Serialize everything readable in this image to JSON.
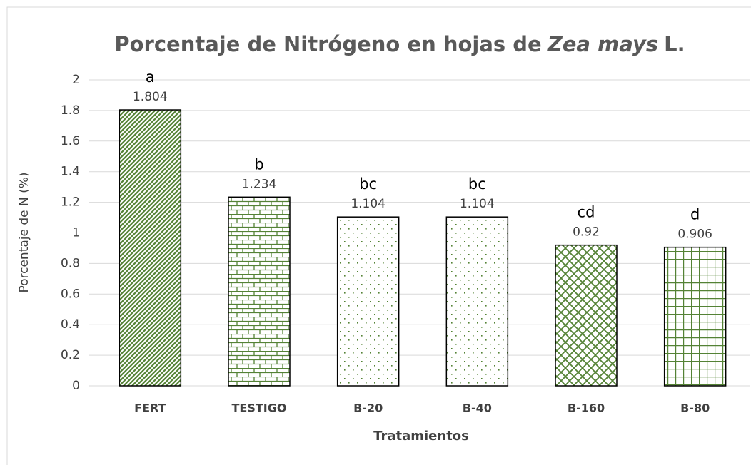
{
  "chart_data": {
    "type": "bar",
    "title": [
      "Porcentaje de Nitrógeno en hojas de",
      "Zea mays",
      "L."
    ],
    "x_label": "Tratamientos",
    "y_label": "Porcentaje de N (%)",
    "categories": [
      "FERT",
      "TESTIGO",
      "B-20",
      "B-40",
      "B-160",
      "B-80"
    ],
    "values": [
      1.804,
      1.234,
      1.104,
      1.104,
      0.92,
      0.906
    ],
    "annotations": [
      "a",
      "b",
      "bc",
      "bc",
      "cd",
      "d"
    ],
    "color": "#548235",
    "patterns": [
      "diagonal",
      "brick",
      "dots",
      "dots",
      "diagonal-cross",
      "grid"
    ],
    "ylim": [
      0,
      2
    ],
    "yticks": [
      0,
      0.2,
      0.4,
      0.6,
      0.8,
      1,
      1.2,
      1.4,
      1.6,
      1.8,
      2
    ],
    "grid": true
  }
}
